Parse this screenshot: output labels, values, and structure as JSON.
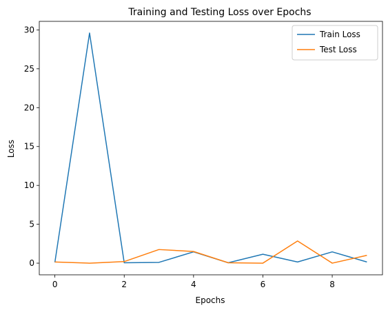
{
  "chart_data": {
    "type": "line",
    "title": "Training and Testing Loss over Epochs",
    "xlabel": "Epochs",
    "ylabel": "Loss",
    "x": [
      0,
      1,
      2,
      3,
      4,
      5,
      6,
      7,
      8,
      9
    ],
    "xlim": [
      -0.45,
      9.45
    ],
    "ylim": [
      -1.5,
      31.1
    ],
    "xticks": [
      0,
      2,
      4,
      6,
      8
    ],
    "yticks": [
      0,
      5,
      10,
      15,
      20,
      25,
      30
    ],
    "grid": false,
    "legend_position": "top-right",
    "series": [
      {
        "name": "Train Loss",
        "color": "#1f77b4",
        "values": [
          0.1,
          29.6,
          0.05,
          0.1,
          1.45,
          0.05,
          1.15,
          0.15,
          1.45,
          0.15
        ]
      },
      {
        "name": "Test Loss",
        "color": "#ff7f0e",
        "values": [
          0.15,
          0.0,
          0.2,
          1.75,
          1.5,
          0.05,
          0.0,
          2.85,
          0.0,
          1.0
        ]
      }
    ]
  }
}
